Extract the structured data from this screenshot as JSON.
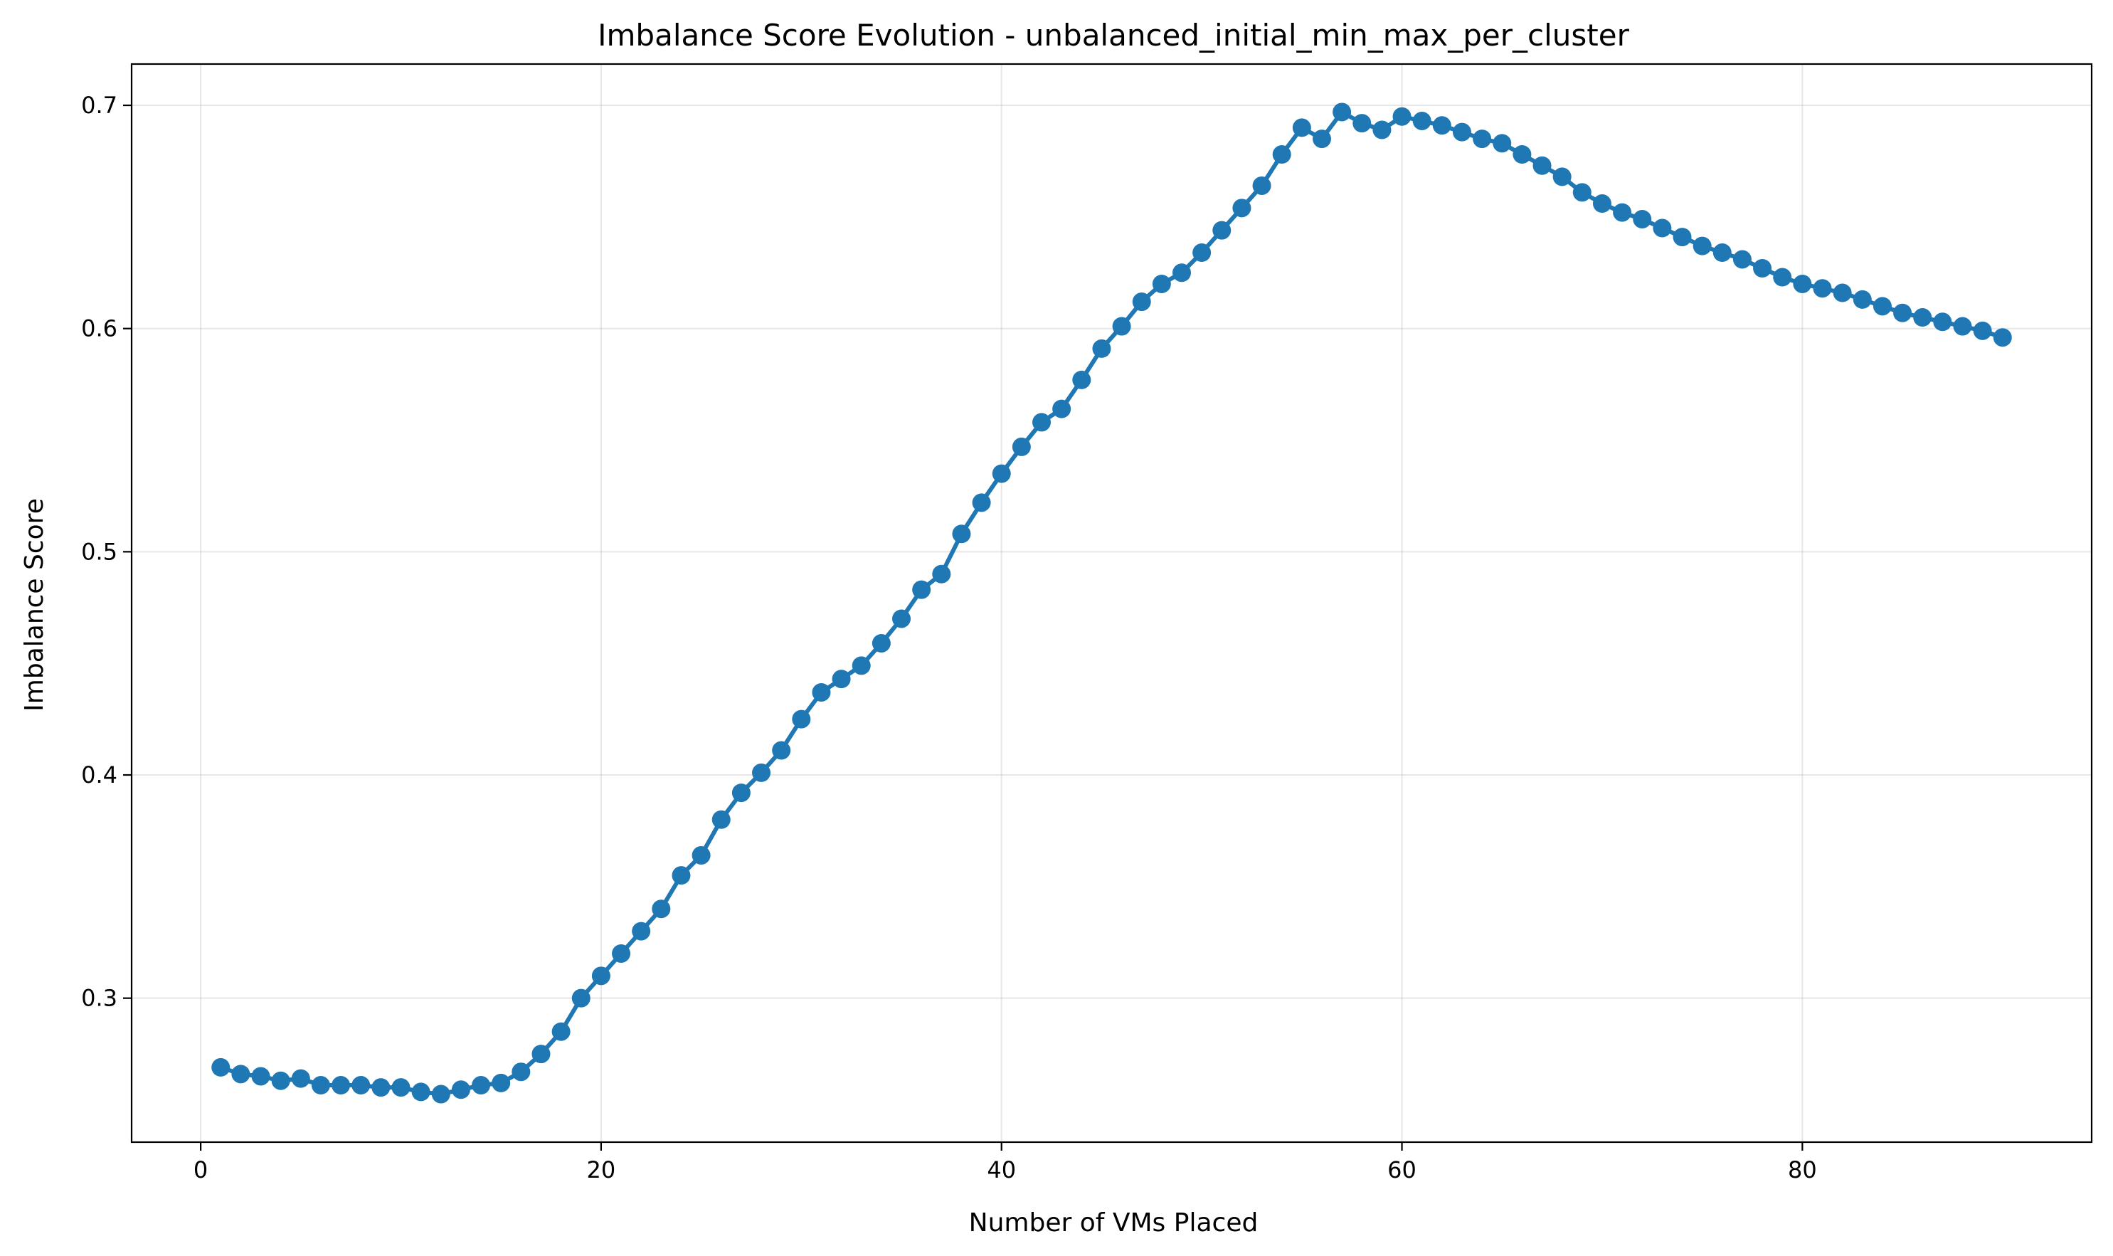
{
  "chart_data": {
    "type": "line",
    "title": "Imbalance Score Evolution - unbalanced_initial_min_max_per_cluster",
    "xlabel": "Number of VMs Placed",
    "ylabel": "Imbalance Score",
    "xlim": [
      -3.45,
      94.45
    ],
    "ylim": [
      0.2355,
      0.7185
    ],
    "xticks": [
      0,
      20,
      40,
      60,
      80
    ],
    "yticks": [
      0.3,
      0.4,
      0.5,
      0.6,
      0.7
    ],
    "grid": true,
    "marker": "circle",
    "color": "#1f77b4",
    "series": [
      {
        "x": [
          1,
          2,
          3,
          4,
          5,
          6,
          7,
          8,
          9,
          10,
          11,
          12,
          13,
          14,
          15,
          16,
          17,
          18,
          19,
          20,
          21,
          22,
          23,
          24,
          25,
          26,
          27,
          28,
          29,
          30,
          31,
          32,
          33,
          34,
          35,
          36,
          37,
          38,
          39,
          40,
          41,
          42,
          43,
          44,
          45,
          46,
          47,
          48,
          49,
          50,
          51,
          52,
          53,
          54,
          55,
          56,
          57,
          58,
          59,
          60,
          61,
          62,
          63,
          64,
          65,
          66,
          67,
          68,
          69,
          70,
          71,
          72,
          73,
          74,
          75,
          76,
          77,
          78,
          79,
          80,
          81,
          82,
          83,
          84,
          85,
          86,
          87,
          88,
          89,
          90
        ],
        "values": [
          0.269,
          0.266,
          0.265,
          0.263,
          0.264,
          0.261,
          0.261,
          0.261,
          0.26,
          0.26,
          0.258,
          0.257,
          0.259,
          0.261,
          0.262,
          0.267,
          0.275,
          0.285,
          0.3,
          0.31,
          0.32,
          0.33,
          0.34,
          0.355,
          0.364,
          0.38,
          0.392,
          0.401,
          0.411,
          0.425,
          0.437,
          0.443,
          0.449,
          0.459,
          0.47,
          0.483,
          0.49,
          0.508,
          0.522,
          0.535,
          0.547,
          0.558,
          0.564,
          0.577,
          0.591,
          0.601,
          0.612,
          0.62,
          0.625,
          0.634,
          0.644,
          0.654,
          0.664,
          0.678,
          0.69,
          0.685,
          0.697,
          0.692,
          0.689,
          0.695,
          0.693,
          0.691,
          0.688,
          0.685,
          0.683,
          0.678,
          0.673,
          0.668,
          0.661,
          0.656,
          0.652,
          0.649,
          0.645,
          0.641,
          0.637,
          0.634,
          0.631,
          0.627,
          0.623,
          0.62,
          0.618,
          0.616,
          0.613,
          0.61,
          0.607,
          0.605,
          0.603,
          0.601,
          0.599,
          0.596
        ]
      }
    ]
  }
}
